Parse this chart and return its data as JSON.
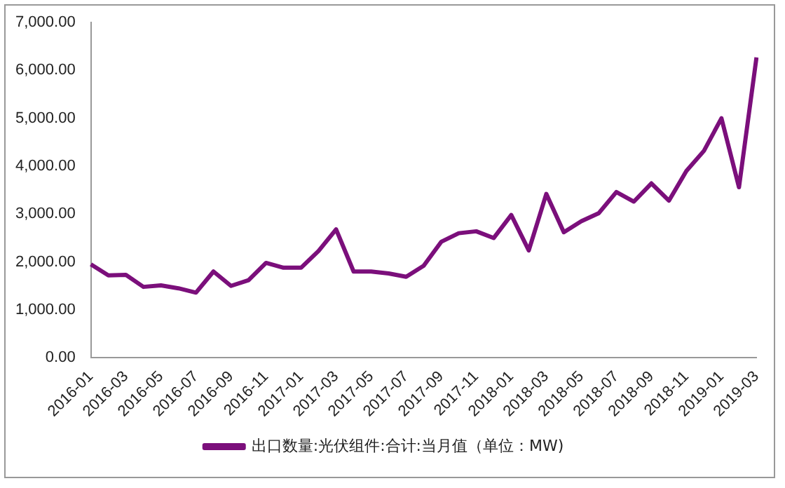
{
  "chart_data": {
    "type": "line",
    "categories": [
      "2016-01",
      null,
      "2016-03",
      null,
      "2016-05",
      null,
      "2016-07",
      null,
      "2016-09",
      null,
      "2016-11",
      null,
      "2017-01",
      null,
      "2017-03",
      null,
      "2017-05",
      null,
      "2017-07",
      null,
      "2017-09",
      null,
      "2017-11",
      null,
      "2018-01",
      null,
      "2018-03",
      null,
      "2018-05",
      null,
      "2018-07",
      null,
      "2018-09",
      null,
      "2018-11",
      null,
      "2019-01",
      null,
      "2019-03"
    ],
    "series": [
      {
        "name": "出口数量:光伏组件:合计:当月值（单位：MW)",
        "color": "#7b0f7b",
        "values": [
          1950,
          1720,
          1730,
          1480,
          1510,
          1450,
          1360,
          1800,
          1500,
          1620,
          1980,
          1880,
          1880,
          2230,
          2680,
          1800,
          1800,
          1760,
          1690,
          1920,
          2420,
          2600,
          2640,
          2500,
          2980,
          2240,
          3420,
          2620,
          2850,
          3020,
          3460,
          3260,
          3640,
          3280,
          3900,
          4320,
          5000,
          3560,
          6270
        ]
      }
    ],
    "ylim": [
      0,
      7000
    ],
    "yticks": [
      {
        "value": 0,
        "label": "0.00"
      },
      {
        "value": 1000,
        "label": "1,000.00"
      },
      {
        "value": 2000,
        "label": "2,000.00"
      },
      {
        "value": 3000,
        "label": "3,000.00"
      },
      {
        "value": 4000,
        "label": "4,000.00"
      },
      {
        "value": 5000,
        "label": "5,000.00"
      },
      {
        "value": 6000,
        "label": "6,000.00"
      },
      {
        "value": 7000,
        "label": "7,000.00"
      }
    ],
    "grid": false,
    "legend": "bottom",
    "marker": "none",
    "line_style": "solid"
  }
}
